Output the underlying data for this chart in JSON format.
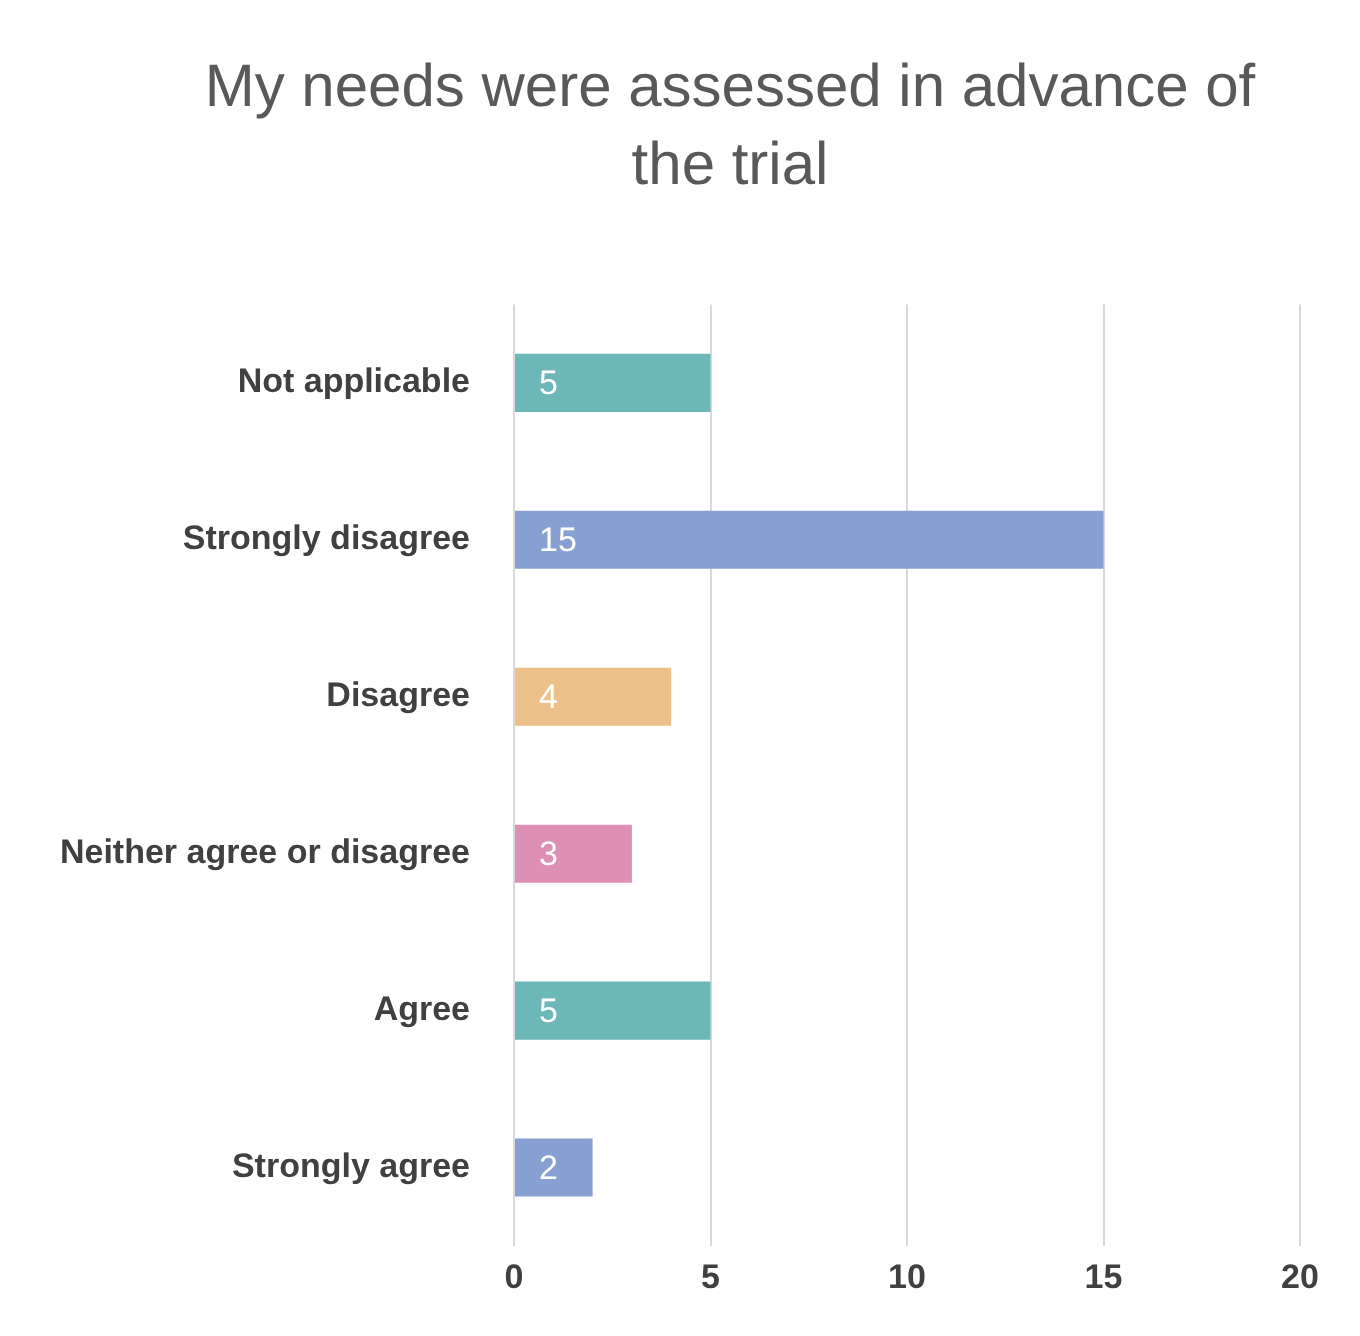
{
  "chart_data": {
    "type": "bar",
    "title": "My needs were assessed in advance of the trial",
    "orientation": "horizontal",
    "categories": [
      "Not applicable",
      "Strongly disagree",
      "Disagree",
      "Neither agree or disagree",
      "Agree",
      "Strongly agree"
    ],
    "values": [
      5,
      15,
      4,
      3,
      5,
      2
    ],
    "colors": [
      "#6cb7b8",
      "#889fd1",
      "#ecc189",
      "#de8fb5",
      "#6cb7b8",
      "#889fd1"
    ],
    "xlim": [
      0,
      20
    ],
    "xticks": [
      0,
      5,
      10,
      15,
      20
    ],
    "grid": "x",
    "data_labels": true
  }
}
